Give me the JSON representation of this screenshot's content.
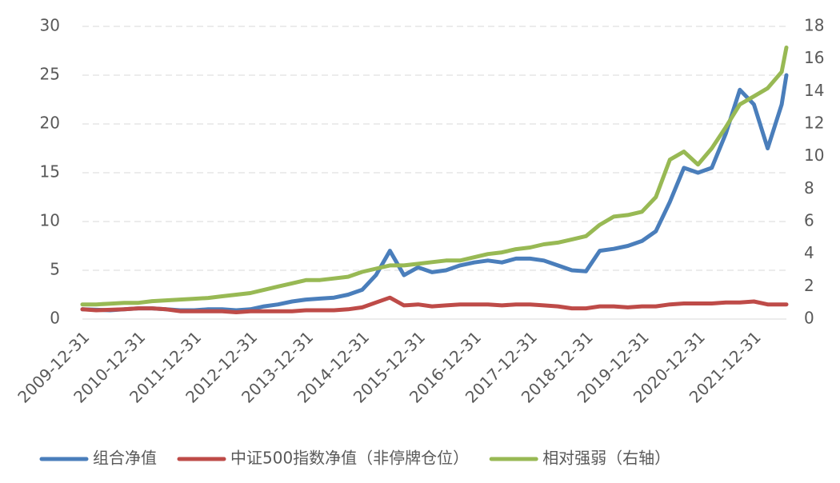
{
  "chart_data": {
    "type": "line",
    "x": [
      "2009-12-31",
      "2010-03-31",
      "2010-06-30",
      "2010-09-30",
      "2010-12-31",
      "2011-03-31",
      "2011-06-30",
      "2011-09-30",
      "2011-12-31",
      "2012-03-31",
      "2012-06-30",
      "2012-09-30",
      "2012-12-31",
      "2013-03-31",
      "2013-06-30",
      "2013-09-30",
      "2013-12-31",
      "2014-03-31",
      "2014-06-30",
      "2014-09-30",
      "2014-12-31",
      "2015-03-31",
      "2015-06-30",
      "2015-09-30",
      "2015-12-31",
      "2016-03-31",
      "2016-06-30",
      "2016-09-30",
      "2016-12-31",
      "2017-03-31",
      "2017-06-30",
      "2017-09-30",
      "2017-12-31",
      "2018-03-31",
      "2018-06-30",
      "2018-09-30",
      "2018-12-31",
      "2019-03-31",
      "2019-06-30",
      "2019-09-30",
      "2019-12-31",
      "2020-03-31",
      "2020-06-30",
      "2020-09-30",
      "2020-12-31",
      "2021-03-31",
      "2021-06-30",
      "2021-09-30",
      "2021-12-31",
      "2022-03-31",
      "2022-06-30",
      "2022-07-31"
    ],
    "series": [
      {
        "name": "组合净值",
        "color": "#4a7ebb",
        "values": [
          1.0,
          0.95,
          0.9,
          1.0,
          1.1,
          1.1,
          1.0,
          0.9,
          0.9,
          1.0,
          1.0,
          0.9,
          1.0,
          1.3,
          1.5,
          1.8,
          2.0,
          2.1,
          2.2,
          2.5,
          3.0,
          4.5,
          7.0,
          4.5,
          5.3,
          4.8,
          5.0,
          5.5,
          5.8,
          6.0,
          5.8,
          6.2,
          6.2,
          6.0,
          5.5,
          5.0,
          4.9,
          7.0,
          7.2,
          7.5,
          8.0,
          9.0,
          12.0,
          15.5,
          15.0,
          15.5,
          19.0,
          23.5,
          22.0,
          17.5,
          22.0,
          25.0
        ]
      },
      {
        "name": "中证500指数净值（非停牌仓位）",
        "color": "#be4b48",
        "values": [
          1.0,
          0.9,
          0.95,
          1.0,
          1.1,
          1.1,
          1.0,
          0.8,
          0.8,
          0.8,
          0.8,
          0.7,
          0.8,
          0.8,
          0.8,
          0.8,
          0.9,
          0.9,
          0.9,
          1.0,
          1.2,
          1.7,
          2.2,
          1.4,
          1.5,
          1.3,
          1.4,
          1.5,
          1.5,
          1.5,
          1.4,
          1.5,
          1.5,
          1.4,
          1.3,
          1.1,
          1.1,
          1.3,
          1.3,
          1.2,
          1.3,
          1.3,
          1.5,
          1.6,
          1.6,
          1.6,
          1.7,
          1.7,
          1.8,
          1.5,
          1.5,
          1.5
        ]
      },
      {
        "name": "相对强弱（右轴）",
        "color": "#98b954",
        "axis": "y2",
        "values": [
          0.9,
          0.9,
          0.95,
          1.0,
          1.0,
          1.1,
          1.15,
          1.2,
          1.25,
          1.3,
          1.4,
          1.5,
          1.6,
          1.8,
          2.0,
          2.2,
          2.4,
          2.4,
          2.5,
          2.6,
          2.9,
          3.1,
          3.3,
          3.3,
          3.4,
          3.5,
          3.6,
          3.6,
          3.8,
          4.0,
          4.1,
          4.3,
          4.4,
          4.6,
          4.7,
          4.9,
          5.1,
          5.8,
          6.3,
          6.4,
          6.6,
          7.5,
          9.8,
          10.3,
          9.5,
          10.5,
          11.8,
          13.2,
          13.7,
          14.2,
          15.2,
          16.7
        ]
      }
    ],
    "xlim": [
      "2009-12-31",
      "2022-07-31"
    ],
    "xticks": [
      "2009-12-31",
      "2010-12-31",
      "2011-12-31",
      "2012-12-31",
      "2013-12-31",
      "2014-12-31",
      "2015-12-31",
      "2016-12-31",
      "2017-12-31",
      "2018-12-31",
      "2019-12-31",
      "2020-12-31",
      "2021-12-31"
    ],
    "ylim": [
      0,
      30
    ],
    "yticks": [
      0,
      5,
      10,
      15,
      20,
      25,
      30
    ],
    "y2lim": [
      0,
      18
    ],
    "y2ticks": [
      0,
      2,
      4,
      6,
      8,
      10,
      12,
      14,
      16,
      18
    ],
    "grid": true,
    "legend": "bottom"
  }
}
